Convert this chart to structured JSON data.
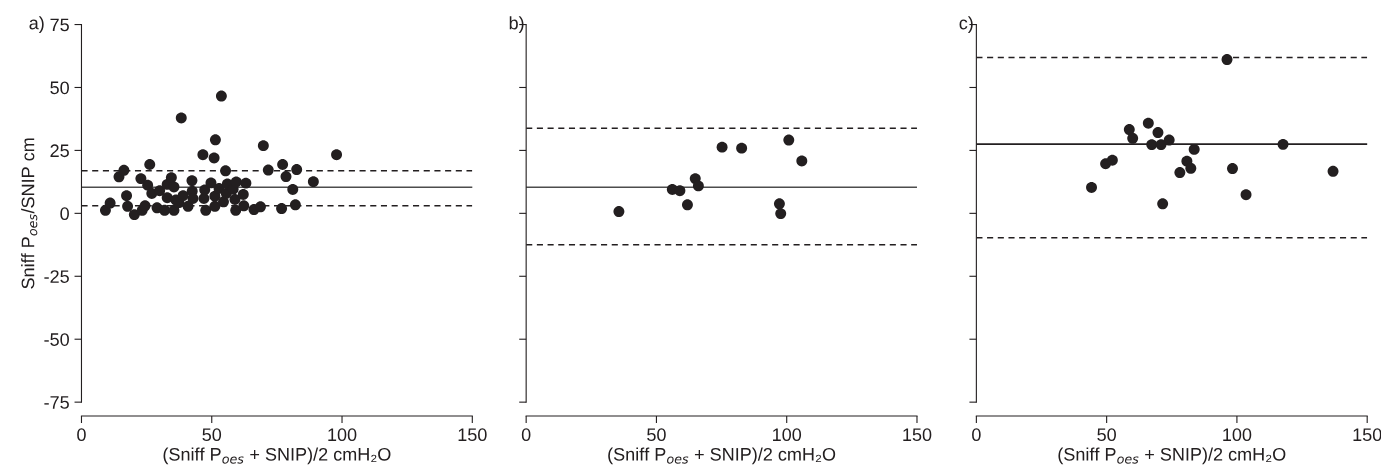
{
  "chart_data": [
    {
      "type": "scatter",
      "title": "a)",
      "xlabel": "(Sniff P$_{oes}$ + SNIP)/2 cmH₂O",
      "ylabel": "Sniff P$_{oes}$/SNIP cm",
      "xlim": [
        0,
        150
      ],
      "xticks": [
        0,
        50,
        100,
        150
      ],
      "ylim": [
        -75,
        75
      ],
      "yticks": [
        -75,
        -50,
        -25,
        0,
        25,
        50,
        75
      ],
      "marker": "circle",
      "grid": false,
      "legend": false,
      "series": [
        {
          "color": "#231f20",
          "x": [
            9.2,
            11.0,
            14.4,
            16.3,
            17.3,
            17.7,
            20.3,
            22.8,
            23.3,
            24.4,
            26.2,
            25.4,
            27.0,
            29.0,
            30.0,
            31.9,
            32.9,
            32.9,
            34.5,
            35.5,
            35.5,
            36.2,
            37.4,
            38.3,
            39.0,
            40.9,
            42.4,
            42.5,
            42.8,
            46.6,
            47.0,
            47.3,
            47.7,
            49.7,
            50.9,
            51.4,
            51.2,
            51.2,
            52.8,
            53.7,
            54.5,
            55.3,
            55.6,
            56.0,
            58.2,
            58.9,
            59.4,
            59.2,
            62.1,
            62.3,
            63.1,
            66.2,
            68.7,
            69.8,
            71.7,
            76.8,
            77.2,
            78.5,
            81.1,
            82.1,
            82.6,
            89.0,
            97.9
          ],
          "values": [
            1.2,
            4.1,
            14.5,
            17.1,
            7.0,
            2.8,
            -0.5,
            13.8,
            1.2,
            3.0,
            19.4,
            11.2,
            7.9,
            2.2,
            9.0,
            1.2,
            11.5,
            6.2,
            14.2,
            10.5,
            1.2,
            5.3,
            4.3,
            37.9,
            7.0,
            2.8,
            13.0,
            8.8,
            5.9,
            23.3,
            5.9,
            9.3,
            1.2,
            12.1,
            22.0,
            29.2,
            6.8,
            2.8,
            9.9,
            46.6,
            4.6,
            16.9,
            7.9,
            11.7,
            9.6,
            5.5,
            12.5,
            1.2,
            7.5,
            3.0,
            12.0,
            1.5,
            2.6,
            26.9,
            17.2,
            1.9,
            19.4,
            14.6,
            9.5,
            3.4,
            17.4,
            12.6,
            23.3
          ]
        }
      ],
      "ref_lines": [
        {
          "axis": "y",
          "value": 10.4,
          "line_style": "solid",
          "color": "#4d4d4d"
        },
        {
          "axis": "y",
          "value": 16.9,
          "line_style": "dashed",
          "color": "#231f20"
        },
        {
          "axis": "y",
          "value": 3.0,
          "line_style": "dashed",
          "color": "#231f20"
        }
      ]
    },
    {
      "type": "scatter",
      "title": "b)",
      "xlabel": "(Sniff P$_{oes}$ + SNIP)/2 cmH₂O",
      "xlim": [
        0,
        150
      ],
      "xticks": [
        0,
        50,
        100,
        150
      ],
      "ylim": [
        -75,
        75
      ],
      "yticks": [
        -75,
        -50,
        -25,
        0,
        25,
        50,
        75
      ],
      "tick_labels": "x",
      "marker": "circle",
      "grid": false,
      "legend": false,
      "series": [
        {
          "color": "#231f20",
          "x": [
            35.6,
            56.1,
            59.0,
            61.9,
            64.9,
            66.1,
            75.2,
            82.7,
            97.2,
            97.7,
            100.8,
            105.8
          ],
          "values": [
            0.7,
            9.5,
            9.0,
            3.4,
            13.8,
            10.9,
            26.3,
            25.9,
            3.8,
            -0.1,
            29.1,
            20.8
          ]
        }
      ],
      "ref_lines": [
        {
          "axis": "y",
          "value": 10.4,
          "line_style": "solid",
          "color": "#4d4d4d"
        },
        {
          "axis": "y",
          "value": 33.8,
          "line_style": "dashed",
          "color": "#231f20"
        },
        {
          "axis": "y",
          "value": -12.5,
          "line_style": "dashed",
          "color": "#231f20"
        }
      ]
    },
    {
      "type": "scatter",
      "title": "c)",
      "xlabel": "(Sniff P$_{oes}$ + SNIP)/2 cmH₂O",
      "xlim": [
        0,
        150
      ],
      "xticks": [
        0,
        50,
        100,
        150
      ],
      "ylim": [
        -75,
        75
      ],
      "yticks": [
        -75,
        -50,
        -25,
        0,
        25,
        50,
        75
      ],
      "tick_labels": "x",
      "marker": "circle",
      "grid": false,
      "legend": false,
      "series": [
        {
          "color": "#231f20",
          "x": [
            44.2,
            49.6,
            52.2,
            58.7,
            60.0,
            66.0,
            67.3,
            69.7,
            70.9,
            71.5,
            74.0,
            78.1,
            80.8,
            82.3,
            83.6,
            96.2,
            98.3,
            103.5,
            117.7,
            136.9
          ],
          "values": [
            10.3,
            19.7,
            21.1,
            33.3,
            29.8,
            35.8,
            27.3,
            32.1,
            27.3,
            3.8,
            29.1,
            16.2,
            20.7,
            17.9,
            25.4,
            61.1,
            17.8,
            7.4,
            27.4,
            16.7
          ]
        }
      ],
      "ref_lines": [
        {
          "axis": "y",
          "value": 27.5,
          "line_style": "solid",
          "color": "#231f20"
        },
        {
          "axis": "y",
          "value": 61.9,
          "line_style": "dashed",
          "color": "#231f20"
        },
        {
          "axis": "y",
          "value": -9.7,
          "line_style": "dashed",
          "color": "#231f20"
        }
      ]
    }
  ]
}
